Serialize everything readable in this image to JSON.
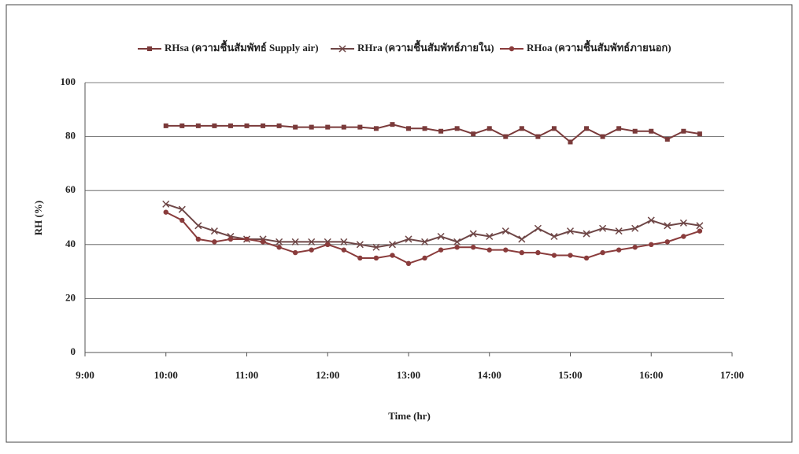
{
  "chart_data": {
    "type": "line",
    "x_label": "Time (hr)",
    "y_label": "RH (%)",
    "x": [
      10.0,
      10.2,
      10.4,
      10.6,
      10.8,
      11.0,
      11.2,
      11.4,
      11.6,
      11.8,
      12.0,
      12.2,
      12.4,
      12.6,
      12.8,
      13.0,
      13.2,
      13.4,
      13.6,
      13.8,
      14.0,
      14.2,
      14.4,
      14.6,
      14.8,
      15.0,
      15.2,
      15.4,
      15.6,
      15.8,
      16.0,
      16.2,
      16.4,
      16.6
    ],
    "series": [
      {
        "name": "RHsa (ความชื้นสัมพัทธ์ Supply air)",
        "color": "#7a3a3a",
        "marker": "square",
        "values": [
          84,
          84,
          84,
          84,
          84,
          84,
          84,
          84,
          83.5,
          83.5,
          83.5,
          83.5,
          83.5,
          83,
          84.5,
          83,
          83,
          82,
          83,
          81,
          83,
          80,
          83,
          80,
          83,
          78,
          83,
          80,
          83,
          82,
          82,
          79,
          82,
          81
        ]
      },
      {
        "name": "RHra (ความชื้นสัมพัทธ์ภายใน)",
        "color": "#6e4646",
        "marker": "x",
        "values": [
          55,
          53,
          47,
          45,
          43,
          42,
          42,
          41,
          41,
          41,
          41,
          41,
          40,
          39,
          40,
          42,
          41,
          43,
          41,
          44,
          43,
          45,
          42,
          46,
          43,
          45,
          44,
          46,
          45,
          46,
          49,
          47,
          48,
          47
        ]
      },
      {
        "name": "RHoa (ความชื้นสัมพัทธ์ภายนอก)",
        "color": "#8a3c3c",
        "marker": "circle",
        "values": [
          52,
          49,
          42,
          41,
          42,
          42,
          41,
          39,
          37,
          38,
          40,
          38,
          35,
          35,
          36,
          33,
          35,
          38,
          39,
          39,
          38,
          38,
          37,
          37,
          36,
          36,
          35,
          37,
          38,
          39,
          40,
          41,
          43,
          45
        ]
      }
    ],
    "xlim": [
      9,
      17
    ],
    "xticks": [
      {
        "value": 9,
        "label": "9:00"
      },
      {
        "value": 10,
        "label": "10:00"
      },
      {
        "value": 11,
        "label": "11:00"
      },
      {
        "value": 12,
        "label": "12:00"
      },
      {
        "value": 13,
        "label": "13:00"
      },
      {
        "value": 14,
        "label": "14:00"
      },
      {
        "value": 15,
        "label": "15:00"
      },
      {
        "value": 16,
        "label": "16:00"
      },
      {
        "value": 17,
        "label": "17:00"
      }
    ],
    "ylim": [
      0,
      100
    ],
    "yticks": [
      0,
      20,
      40,
      60,
      80,
      100
    ],
    "grid": true,
    "legend": "top"
  }
}
